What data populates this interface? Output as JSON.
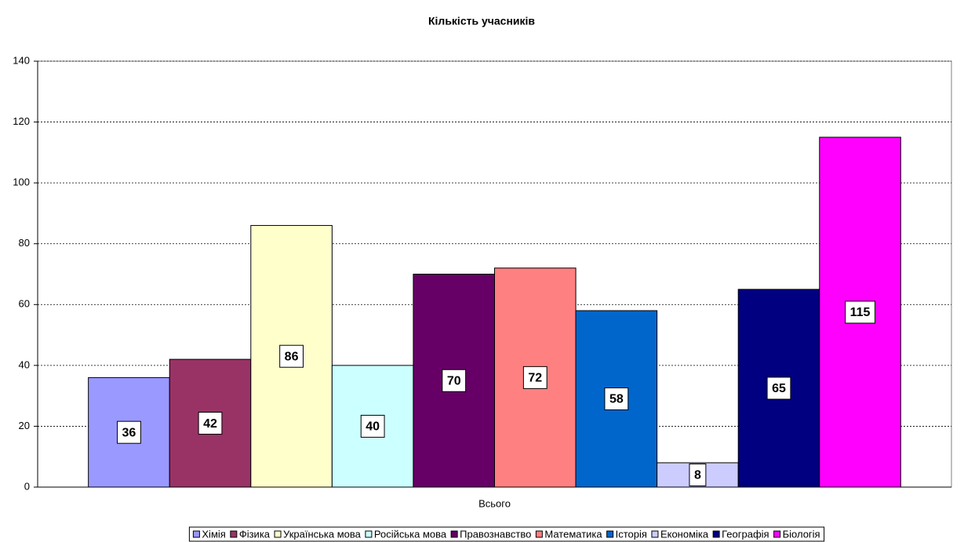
{
  "chart_data": {
    "type": "bar",
    "title": "Кількість учасників",
    "categories": [
      "Всього"
    ],
    "series": [
      {
        "name": "Хімія",
        "color": "#9999ff",
        "values": [
          36
        ]
      },
      {
        "name": "Фізика",
        "color": "#993366",
        "values": [
          42
        ]
      },
      {
        "name": "Українська мова",
        "color": "#ffffcc",
        "values": [
          86
        ]
      },
      {
        "name": "Російська мова",
        "color": "#ccffff",
        "values": [
          40
        ]
      },
      {
        "name": "Правознавство",
        "color": "#660066",
        "values": [
          70
        ]
      },
      {
        "name": "Математика",
        "color": "#ff8080",
        "values": [
          72
        ]
      },
      {
        "name": "Історія",
        "color": "#0066cc",
        "values": [
          58
        ]
      },
      {
        "name": "Економіка",
        "color": "#ccccff",
        "values": [
          8
        ]
      },
      {
        "name": "Географія",
        "color": "#000080",
        "values": [
          65
        ]
      },
      {
        "name": "Біологія",
        "color": "#ff00ff",
        "values": [
          115
        ]
      }
    ],
    "ylim": [
      0,
      140
    ],
    "yticks": [
      0,
      20,
      40,
      60,
      80,
      100,
      120,
      140
    ],
    "grid": true,
    "legend": "bottom"
  }
}
